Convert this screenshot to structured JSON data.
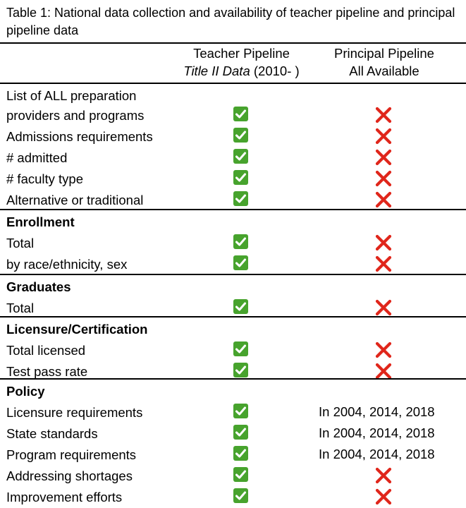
{
  "caption": "Table 1: National data collection and availability of teacher pipeline and principal pipeline data",
  "columns": {
    "teacher": {
      "line1": "Teacher Pipeline",
      "line2_italic": "Title II Data",
      "line2_rest": " (2010- )"
    },
    "principal": {
      "line1": "Principal Pipeline",
      "line2": "All Available"
    }
  },
  "icons": {
    "yes": "green-checkmark-icon",
    "no": "red-cross-icon",
    "yes_color": "#47a32d",
    "no_color": "#e0261b"
  },
  "rows": [
    {
      "label_line1": "List of ALL  preparation",
      "label": "providers and programs",
      "teacher": "yes",
      "principal": "no"
    },
    {
      "label": "Admissions requirements",
      "teacher": "yes",
      "principal": "no"
    },
    {
      "label": "# admitted",
      "teacher": "yes",
      "principal": "no"
    },
    {
      "label": "# faculty type",
      "teacher": "yes",
      "principal": "no"
    },
    {
      "label": "Alternative or traditional",
      "teacher": "yes",
      "principal": "no"
    }
  ],
  "sections": [
    {
      "title": "Enrollment",
      "rows": [
        {
          "label": "Total",
          "teacher": "yes",
          "principal": "no"
        },
        {
          "label": "by race/ethnicity, sex",
          "teacher": "yes",
          "principal": "no"
        }
      ]
    },
    {
      "title": "Graduates",
      "rows": [
        {
          "label": "Total",
          "teacher": "yes",
          "principal": "no"
        }
      ]
    },
    {
      "title": "Licensure/Certification",
      "rows": [
        {
          "label": "Total licensed",
          "teacher": "yes",
          "principal": "no"
        },
        {
          "label": "Test pass rate",
          "teacher": "yes",
          "principal": "no"
        }
      ]
    },
    {
      "title": "Policy",
      "rows": [
        {
          "label": "Licensure requirements",
          "teacher": "yes",
          "principal": "In 2004, 2014, 2018"
        },
        {
          "label": "State standards",
          "teacher": "yes",
          "principal": "In 2004, 2014, 2018"
        },
        {
          "label": "Program requirements",
          "teacher": "yes",
          "principal": "In 2004, 2014, 2018"
        },
        {
          "label": "Addressing shortages",
          "teacher": "yes",
          "principal": "no"
        },
        {
          "label": "Improvement efforts",
          "teacher": "yes",
          "principal": "no"
        }
      ]
    }
  ]
}
